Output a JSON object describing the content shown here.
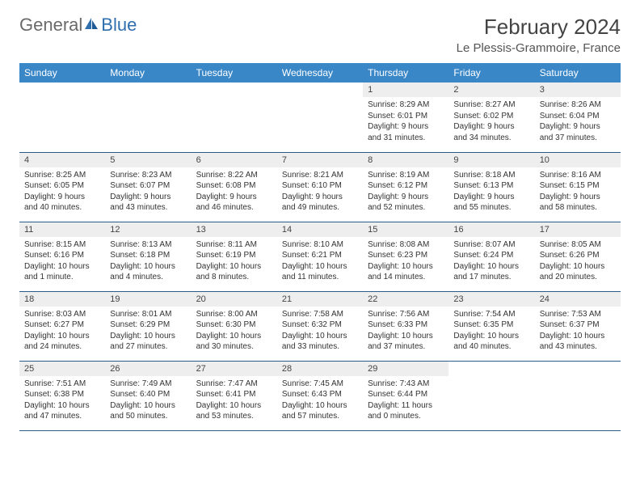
{
  "logo": {
    "part1": "General",
    "part2": "Blue"
  },
  "title": "February 2024",
  "location": "Le Plessis-Grammoire, France",
  "colors": {
    "header_bg": "#3a87c8",
    "header_fg": "#ffffff",
    "rule": "#2c5a8a",
    "daynum_bg": "#eeeeee",
    "logo_gray": "#6a6a6a",
    "logo_blue": "#2f6fb0"
  },
  "weekdays": [
    "Sunday",
    "Monday",
    "Tuesday",
    "Wednesday",
    "Thursday",
    "Friday",
    "Saturday"
  ],
  "weeks": [
    [
      null,
      null,
      null,
      null,
      {
        "n": "1",
        "sunrise": "8:29 AM",
        "sunset": "6:01 PM",
        "daylight": "9 hours and 31 minutes."
      },
      {
        "n": "2",
        "sunrise": "8:27 AM",
        "sunset": "6:02 PM",
        "daylight": "9 hours and 34 minutes."
      },
      {
        "n": "3",
        "sunrise": "8:26 AM",
        "sunset": "6:04 PM",
        "daylight": "9 hours and 37 minutes."
      }
    ],
    [
      {
        "n": "4",
        "sunrise": "8:25 AM",
        "sunset": "6:05 PM",
        "daylight": "9 hours and 40 minutes."
      },
      {
        "n": "5",
        "sunrise": "8:23 AM",
        "sunset": "6:07 PM",
        "daylight": "9 hours and 43 minutes."
      },
      {
        "n": "6",
        "sunrise": "8:22 AM",
        "sunset": "6:08 PM",
        "daylight": "9 hours and 46 minutes."
      },
      {
        "n": "7",
        "sunrise": "8:21 AM",
        "sunset": "6:10 PM",
        "daylight": "9 hours and 49 minutes."
      },
      {
        "n": "8",
        "sunrise": "8:19 AM",
        "sunset": "6:12 PM",
        "daylight": "9 hours and 52 minutes."
      },
      {
        "n": "9",
        "sunrise": "8:18 AM",
        "sunset": "6:13 PM",
        "daylight": "9 hours and 55 minutes."
      },
      {
        "n": "10",
        "sunrise": "8:16 AM",
        "sunset": "6:15 PM",
        "daylight": "9 hours and 58 minutes."
      }
    ],
    [
      {
        "n": "11",
        "sunrise": "8:15 AM",
        "sunset": "6:16 PM",
        "daylight": "10 hours and 1 minute."
      },
      {
        "n": "12",
        "sunrise": "8:13 AM",
        "sunset": "6:18 PM",
        "daylight": "10 hours and 4 minutes."
      },
      {
        "n": "13",
        "sunrise": "8:11 AM",
        "sunset": "6:19 PM",
        "daylight": "10 hours and 8 minutes."
      },
      {
        "n": "14",
        "sunrise": "8:10 AM",
        "sunset": "6:21 PM",
        "daylight": "10 hours and 11 minutes."
      },
      {
        "n": "15",
        "sunrise": "8:08 AM",
        "sunset": "6:23 PM",
        "daylight": "10 hours and 14 minutes."
      },
      {
        "n": "16",
        "sunrise": "8:07 AM",
        "sunset": "6:24 PM",
        "daylight": "10 hours and 17 minutes."
      },
      {
        "n": "17",
        "sunrise": "8:05 AM",
        "sunset": "6:26 PM",
        "daylight": "10 hours and 20 minutes."
      }
    ],
    [
      {
        "n": "18",
        "sunrise": "8:03 AM",
        "sunset": "6:27 PM",
        "daylight": "10 hours and 24 minutes."
      },
      {
        "n": "19",
        "sunrise": "8:01 AM",
        "sunset": "6:29 PM",
        "daylight": "10 hours and 27 minutes."
      },
      {
        "n": "20",
        "sunrise": "8:00 AM",
        "sunset": "6:30 PM",
        "daylight": "10 hours and 30 minutes."
      },
      {
        "n": "21",
        "sunrise": "7:58 AM",
        "sunset": "6:32 PM",
        "daylight": "10 hours and 33 minutes."
      },
      {
        "n": "22",
        "sunrise": "7:56 AM",
        "sunset": "6:33 PM",
        "daylight": "10 hours and 37 minutes."
      },
      {
        "n": "23",
        "sunrise": "7:54 AM",
        "sunset": "6:35 PM",
        "daylight": "10 hours and 40 minutes."
      },
      {
        "n": "24",
        "sunrise": "7:53 AM",
        "sunset": "6:37 PM",
        "daylight": "10 hours and 43 minutes."
      }
    ],
    [
      {
        "n": "25",
        "sunrise": "7:51 AM",
        "sunset": "6:38 PM",
        "daylight": "10 hours and 47 minutes."
      },
      {
        "n": "26",
        "sunrise": "7:49 AM",
        "sunset": "6:40 PM",
        "daylight": "10 hours and 50 minutes."
      },
      {
        "n": "27",
        "sunrise": "7:47 AM",
        "sunset": "6:41 PM",
        "daylight": "10 hours and 53 minutes."
      },
      {
        "n": "28",
        "sunrise": "7:45 AM",
        "sunset": "6:43 PM",
        "daylight": "10 hours and 57 minutes."
      },
      {
        "n": "29",
        "sunrise": "7:43 AM",
        "sunset": "6:44 PM",
        "daylight": "11 hours and 0 minutes."
      },
      null,
      null
    ]
  ],
  "labels": {
    "sunrise": "Sunrise: ",
    "sunset": "Sunset: ",
    "daylight": "Daylight: "
  }
}
